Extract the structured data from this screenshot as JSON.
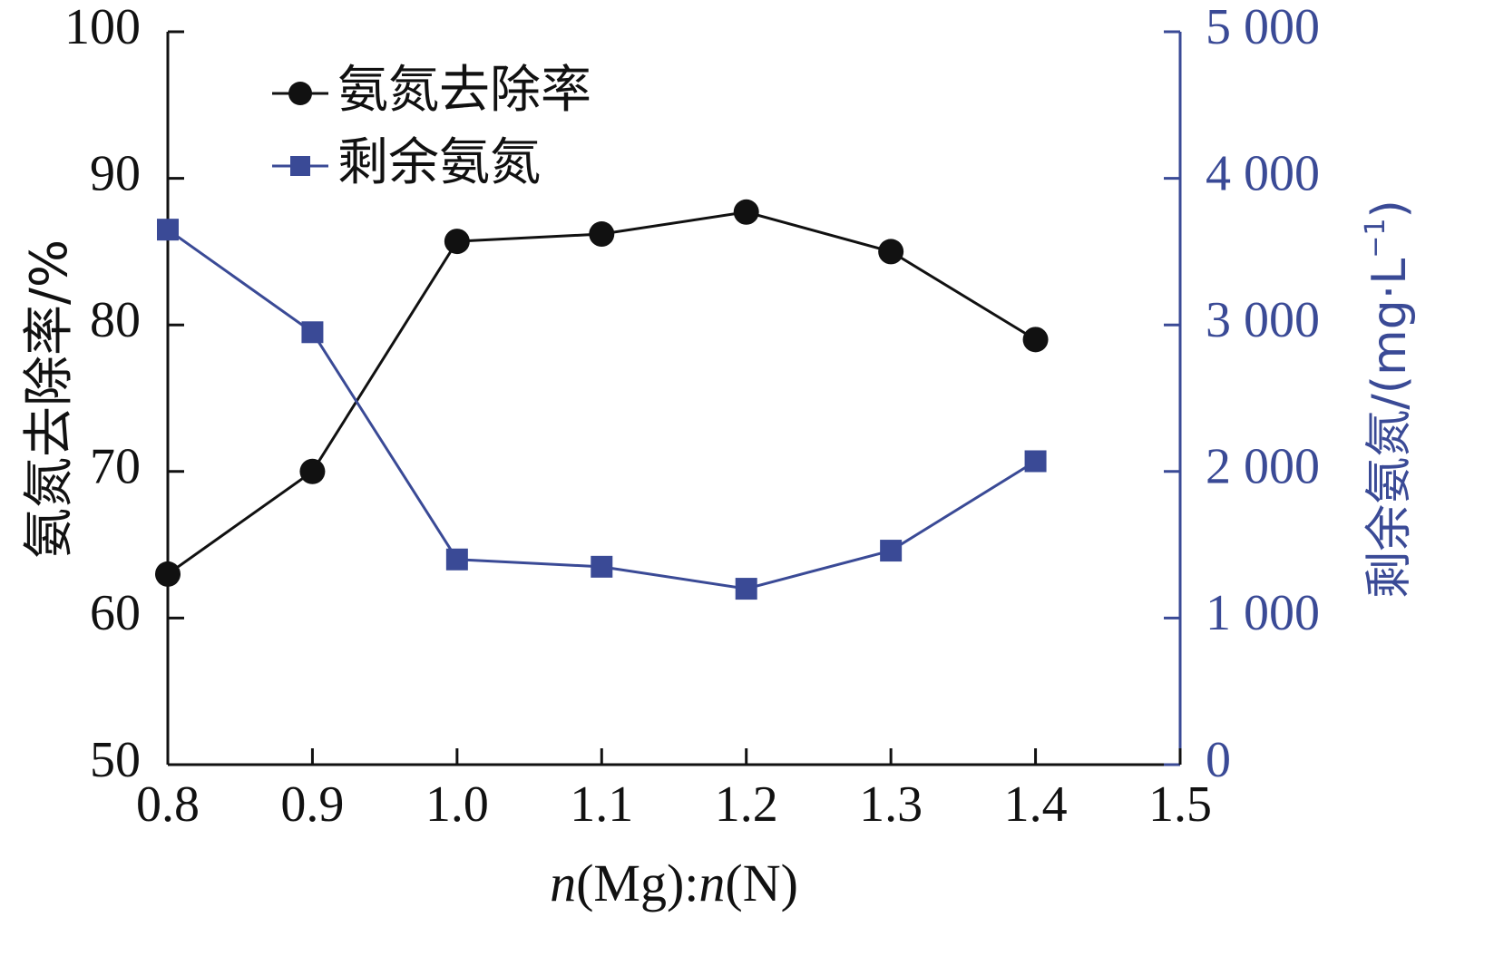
{
  "chart_data": {
    "type": "line",
    "xlabel_parts": [
      {
        "text": "n",
        "italic": true
      },
      {
        "text": "(Mg):",
        "italic": false
      },
      {
        "text": "n",
        "italic": true
      },
      {
        "text": "(N)",
        "italic": false
      }
    ],
    "x_ticks": [
      "0.8",
      "0.9",
      "1.0",
      "1.1",
      "1.2",
      "1.3",
      "1.4",
      "1.5"
    ],
    "xlim": [
      0.8,
      1.5
    ],
    "y_left": {
      "label": "氨氮去除率/%",
      "ticks": [
        "50",
        "60",
        "70",
        "80",
        "90",
        "100"
      ],
      "lim": [
        50,
        100
      ]
    },
    "y_right": {
      "label_main": "剩余氨氮/(mg·L",
      "label_sup": "−1",
      "label_close": ")",
      "ticks": [
        "0",
        "1 000",
        "2 000",
        "3 000",
        "4 000",
        "5 000"
      ],
      "lim": [
        0,
        5000
      ]
    },
    "series": [
      {
        "name": "氨氮去除率",
        "axis": "left",
        "marker": "circle",
        "color": "#111111",
        "x": [
          0.8,
          0.9,
          1.0,
          1.1,
          1.2,
          1.3,
          1.4
        ],
        "values": [
          63.0,
          70.0,
          85.7,
          86.2,
          87.7,
          85.0,
          79.0
        ]
      },
      {
        "name": "剩余氨氮",
        "axis": "right",
        "marker": "square",
        "color": "#3a4a96",
        "x": [
          0.8,
          0.9,
          1.0,
          1.1,
          1.2,
          1.3,
          1.4
        ],
        "values": [
          3650,
          2950,
          1400,
          1350,
          1200,
          1460,
          2070
        ]
      }
    ],
    "legend_position": "top-left",
    "grid": false
  }
}
